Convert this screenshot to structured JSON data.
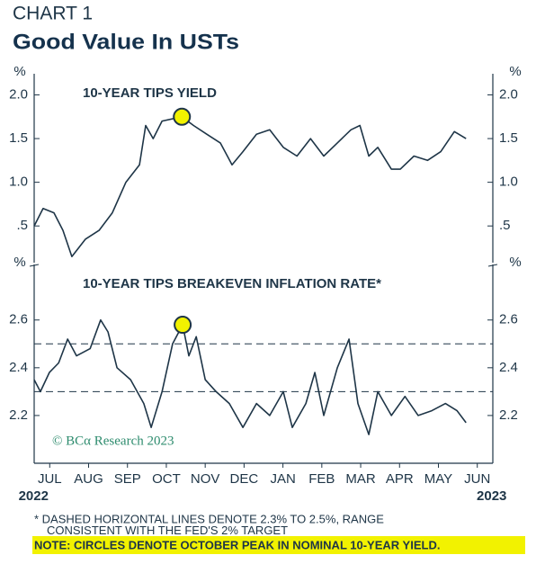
{
  "header": {
    "kicker": "CHART 1",
    "title": "Good Value In USTs"
  },
  "chart_data": [
    {
      "type": "line",
      "title": "10-YEAR TIPS YIELD",
      "y_unit": "%",
      "color": "#1e3547",
      "highlight_index": 13,
      "highlight_color": "#f2f200",
      "x": [
        0,
        0.23,
        0.51,
        0.74,
        0.97,
        1.32,
        1.67,
        2.01,
        2.36,
        2.71,
        2.87,
        3.06,
        3.29,
        3.8,
        4.1,
        4.44,
        4.79,
        5.09,
        5.37,
        5.72,
        6.06,
        6.41,
        6.76,
        7.11,
        7.45,
        7.8,
        8.15,
        8.38,
        8.61,
        8.84,
        9.19,
        9.42,
        9.77,
        10.12,
        10.46,
        10.81,
        11.11
      ],
      "series": [
        {
          "name": "10-Year TIPS Yield",
          "values": [
            0.5,
            0.7,
            0.65,
            0.45,
            0.15,
            0.35,
            0.45,
            0.65,
            1.0,
            1.2,
            1.65,
            1.5,
            1.7,
            1.75,
            1.65,
            1.55,
            1.45,
            1.2,
            1.35,
            1.55,
            1.6,
            1.4,
            1.3,
            1.5,
            1.3,
            1.45,
            1.6,
            1.65,
            1.3,
            1.4,
            1.15,
            1.15,
            1.3,
            1.25,
            1.35,
            1.58,
            1.5
          ]
        }
      ],
      "xlim": [
        0,
        11.8
      ],
      "ylim": [
        0.08,
        2.18
      ],
      "yticks": [
        {
          "value": 0.5,
          "label": ".5"
        },
        {
          "value": 1,
          "label": "1.0"
        },
        1.5,
        {
          "value": 2,
          "label": "2.0"
        }
      ]
    },
    {
      "type": "line",
      "title": "10-YEAR TIPS BREAKEVEN INFLATION RATE*",
      "y_unit": "%",
      "color": "#1e3547",
      "highlight_index": 15,
      "highlight_color": "#f2f200",
      "x": [
        0,
        0.16,
        0.39,
        0.63,
        0.86,
        1.09,
        1.44,
        1.71,
        1.9,
        2.13,
        2.48,
        2.82,
        3.01,
        3.29,
        3.56,
        3.82,
        3.98,
        4.17,
        4.4,
        4.68,
        5.02,
        5.37,
        5.72,
        6.06,
        6.41,
        6.64,
        6.99,
        7.22,
        7.45,
        7.8,
        8.1,
        8.33,
        8.61,
        8.84,
        9.19,
        9.54,
        9.88,
        10.23,
        10.58,
        10.88,
        11.11
      ],
      "series": [
        {
          "name": "10-Year TIPS Breakeven Inflation Rate",
          "values": [
            2.35,
            2.3,
            2.38,
            2.42,
            2.52,
            2.45,
            2.48,
            2.6,
            2.55,
            2.4,
            2.35,
            2.25,
            2.15,
            2.3,
            2.5,
            2.58,
            2.45,
            2.53,
            2.35,
            2.3,
            2.25,
            2.15,
            2.25,
            2.2,
            2.3,
            2.15,
            2.25,
            2.38,
            2.2,
            2.4,
            2.52,
            2.25,
            2.12,
            2.3,
            2.2,
            2.28,
            2.2,
            2.22,
            2.25,
            2.22,
            2.17
          ]
        }
      ],
      "reference_lines": [
        2.3,
        2.5
      ],
      "watermark": "© BCα Research 2023",
      "xlim": [
        0,
        11.8
      ],
      "ylim": [
        2.0,
        2.81
      ],
      "yticks": [
        2.2,
        2.4,
        2.6
      ],
      "xticks": [
        {
          "value": 0.4,
          "label": "JUL"
        },
        {
          "value": 1.4,
          "label": "AUG"
        },
        {
          "value": 2.4,
          "label": "SEP"
        },
        {
          "value": 3.4,
          "label": "OCT"
        },
        {
          "value": 4.4,
          "label": "NOV"
        },
        {
          "value": 5.4,
          "label": "DEC"
        },
        {
          "value": 6.4,
          "label": "JAN"
        },
        {
          "value": 7.4,
          "label": "FEB"
        },
        {
          "value": 8.4,
          "label": "MAR"
        },
        {
          "value": 9.4,
          "label": "APR"
        },
        {
          "value": 10.4,
          "label": "MAY"
        },
        {
          "value": 11.4,
          "label": "JUN"
        }
      ],
      "x_year_labels": [
        "2022",
        "2023"
      ]
    }
  ],
  "footnotes": [
    "* DASHED HORIZONTAL LINES DENOTE 2.3% TO 2.5%, RANGE",
    "CONSISTENT WITH THE FED'S 2% TARGET"
  ],
  "note": "NOTE: CIRCLES DENOTE OCTOBER PEAK IN NOMINAL 10-YEAR YIELD."
}
